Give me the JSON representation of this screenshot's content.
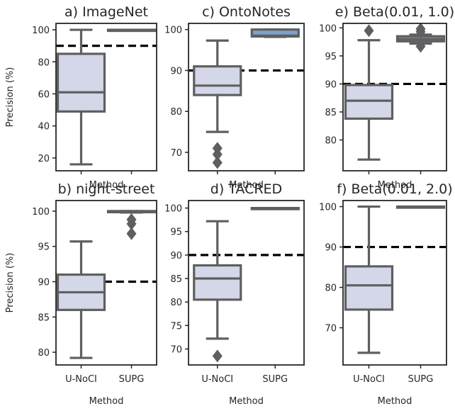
{
  "figure": {
    "colors": {
      "unoci_fill": "#d4d7e8",
      "supg_fill": "#7ba3c8",
      "box_stroke": "#5f5f5f",
      "axis": "#262626",
      "threshold": "#000000"
    }
  },
  "chart_data": [
    {
      "id": "a",
      "type": "boxplot",
      "title": "a) ImageNet",
      "ylabel": "Precision (%)",
      "xlabel": "Method",
      "ylim": [
        12,
        104
      ],
      "yticks": [
        20,
        40,
        60,
        80,
        100
      ],
      "categories": [
        "",
        ""
      ],
      "threshold": 90,
      "series": [
        {
          "q1": 49,
          "median": 61,
          "q3": 85,
          "whisker_low": 16,
          "whisker_high": 100,
          "outliers": []
        },
        {
          "q1": 99.7,
          "median": 100,
          "q3": 100,
          "whisker_low": 99.5,
          "whisker_high": 100,
          "outliers": []
        }
      ]
    },
    {
      "id": "c",
      "type": "boxplot",
      "title": "c) OntoNotes",
      "ylabel": "",
      "xlabel": "Method",
      "ylim": [
        65.5,
        101.5
      ],
      "yticks": [
        70,
        80,
        90,
        100
      ],
      "categories": [
        "",
        ""
      ],
      "threshold": 90,
      "series": [
        {
          "q1": 84,
          "median": 86.3,
          "q3": 91,
          "whisker_low": 75,
          "whisker_high": 97.3,
          "outliers": [
            71,
            69.5,
            67.5
          ]
        },
        {
          "q1": 98.3,
          "median": 98.5,
          "q3": 100,
          "whisker_low": 98.2,
          "whisker_high": 100,
          "outliers": []
        }
      ]
    },
    {
      "id": "e",
      "type": "boxplot",
      "title": "e) Beta(0.01, 1.0)",
      "ylabel": "",
      "xlabel": "Method",
      "ylim": [
        74.5,
        100.8
      ],
      "yticks": [
        80,
        85,
        90,
        95,
        100
      ],
      "categories": [
        "",
        ""
      ],
      "threshold": 90,
      "series": [
        {
          "q1": 83.8,
          "median": 87,
          "q3": 89.8,
          "whisker_low": 76.5,
          "whisker_high": 97.8,
          "outliers": [
            99.5
          ]
        },
        {
          "q1": 97.6,
          "median": 98,
          "q3": 98.5,
          "whisker_low": 97.2,
          "whisker_high": 98.8,
          "outliers": [
            99.3,
            99.8,
            96.7
          ]
        }
      ]
    },
    {
      "id": "b",
      "type": "boxplot",
      "title": "b) night-street",
      "ylabel": "Precision (%)",
      "xlabel": "Method",
      "ylim": [
        78.2,
        101.5
      ],
      "yticks": [
        80,
        85,
        90,
        95,
        100
      ],
      "categories": [
        "U-NoCI",
        "SUPG"
      ],
      "threshold": 90,
      "series": [
        {
          "q1": 86,
          "median": 88.5,
          "q3": 91,
          "whisker_low": 79.2,
          "whisker_high": 95.7,
          "outliers": []
        },
        {
          "q1": 99.9,
          "median": 100,
          "q3": 100,
          "whisker_low": 99.8,
          "whisker_high": 100,
          "outliers": [
            98.8,
            98.2,
            96.8
          ]
        }
      ]
    },
    {
      "id": "d",
      "type": "boxplot",
      "title": "d) TACRED",
      "ylabel": "",
      "xlabel": "Method",
      "ylim": [
        66.6,
        101.6
      ],
      "yticks": [
        70,
        75,
        80,
        85,
        90,
        95,
        100
      ],
      "categories": [
        "U-NoCI",
        "SUPG"
      ],
      "threshold": 90,
      "series": [
        {
          "q1": 80.5,
          "median": 85,
          "q3": 87.8,
          "whisker_low": 72.2,
          "whisker_high": 97.2,
          "outliers": [
            68.5
          ]
        },
        {
          "q1": 99.9,
          "median": 100,
          "q3": 100,
          "whisker_low": 99.8,
          "whisker_high": 100,
          "outliers": []
        }
      ]
    },
    {
      "id": "f",
      "type": "boxplot",
      "title": "f) Beta(0.01, 2.0)",
      "ylabel": "",
      "xlabel": "Method",
      "ylim": [
        60.8,
        101.5
      ],
      "yticks": [
        70,
        80,
        90,
        100
      ],
      "categories": [
        "U-NoCI",
        "SUPG"
      ],
      "threshold": 90,
      "series": [
        {
          "q1": 74.5,
          "median": 80.5,
          "q3": 85.2,
          "whisker_low": 63.8,
          "whisker_high": 100,
          "outliers": []
        },
        {
          "q1": 99.9,
          "median": 100,
          "q3": 100,
          "whisker_low": 99.8,
          "whisker_high": 100,
          "outliers": []
        }
      ]
    }
  ]
}
